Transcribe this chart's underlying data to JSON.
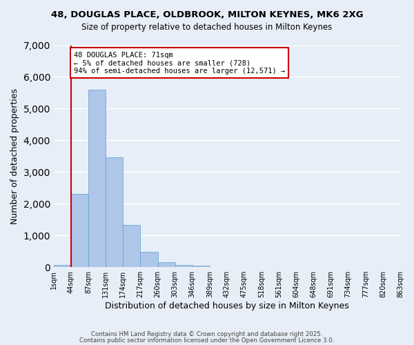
{
  "title_line1": "48, DOUGLAS PLACE, OLDBROOK, MILTON KEYNES, MK6 2XG",
  "title_line2": "Size of property relative to detached houses in Milton Keynes",
  "xlabel": "Distribution of detached houses by size in Milton Keynes",
  "ylabel": "Number of detached properties",
  "bar_values": [
    75,
    2300,
    5600,
    3470,
    1340,
    480,
    160,
    75,
    50,
    0,
    0,
    0,
    0,
    0,
    0,
    0,
    0,
    0,
    0,
    0
  ],
  "bin_labels": [
    "1sqm",
    "44sqm",
    "87sqm",
    "131sqm",
    "174sqm",
    "217sqm",
    "260sqm",
    "303sqm",
    "346sqm",
    "389sqm",
    "432sqm",
    "475sqm",
    "518sqm",
    "561sqm",
    "604sqm",
    "648sqm",
    "691sqm",
    "734sqm",
    "777sqm",
    "820sqm",
    "863sqm"
  ],
  "bar_color": "#aec6e8",
  "bar_edge_color": "#5a9fd4",
  "bg_color": "#e8eef7",
  "grid_color": "#ffffff",
  "vline_x": 1,
  "vline_color": "#cc0000",
  "annotation_text": "48 DOUGLAS PLACE: 71sqm\n← 5% of detached houses are smaller (728)\n94% of semi-detached houses are larger (12,571) →",
  "annotation_box_color": "#ffffff",
  "annotation_box_edge": "#cc0000",
  "ylim": [
    0,
    7000
  ],
  "yticks": [
    0,
    1000,
    2000,
    3000,
    4000,
    5000,
    6000,
    7000
  ],
  "footer1": "Contains HM Land Registry data © Crown copyright and database right 2025.",
  "footer2": "Contains public sector information licensed under the Open Government Licence 3.0."
}
